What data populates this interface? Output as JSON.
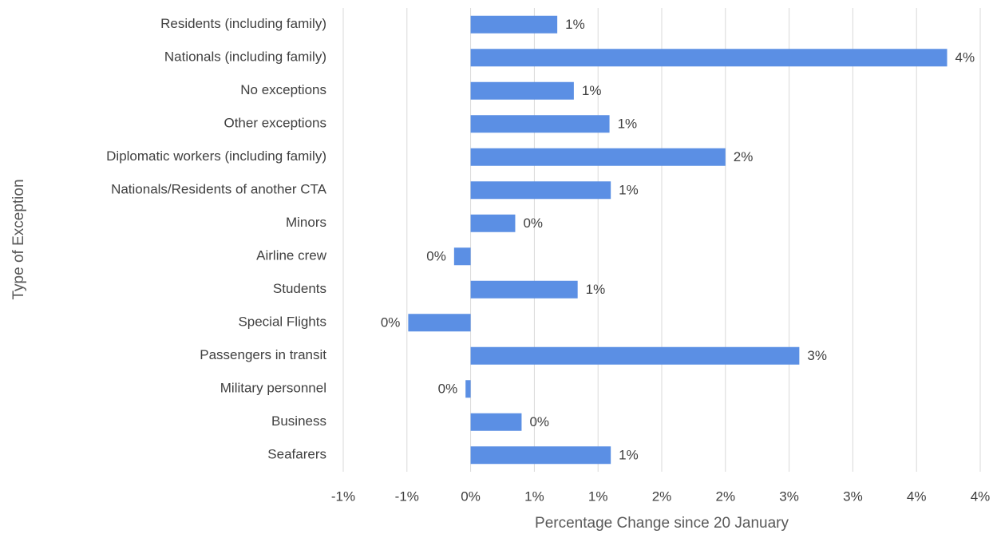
{
  "chart_data": {
    "type": "hbar",
    "x_label": "Percentage Change since 20 January",
    "y_label": "Type of Exception",
    "categories": [
      "Residents (including family)",
      "Nationals (including family)",
      "No exceptions",
      "Other exceptions",
      "Diplomatic workers (including family)",
      "Nationals/Residents of another CTA",
      "Minors",
      "Airline crew",
      "Students",
      "Special Flights",
      "Passengers in transit",
      "Military personnel",
      "Business",
      "Seafarers"
    ],
    "values": [
      0.68,
      3.74,
      0.81,
      1.09,
      2.0,
      1.1,
      0.35,
      -0.13,
      0.84,
      -0.49,
      2.58,
      -0.04,
      0.4,
      1.1
    ],
    "value_labels": [
      "1%",
      "4%",
      "1%",
      "1%",
      "2%",
      "1%",
      "0%",
      "0%",
      "1%",
      "0%",
      "3%",
      "0%",
      "0%",
      "1%"
    ],
    "color": "#5b8fe4",
    "xlim": [
      -1,
      4
    ],
    "xticks": [
      {
        "value": -1,
        "label": "-1%"
      },
      {
        "value": -0.5,
        "label": "-1%"
      },
      {
        "value": 0,
        "label": "0%"
      },
      {
        "value": 0.5,
        "label": "1%"
      },
      {
        "value": 1,
        "label": "1%"
      },
      {
        "value": 1.5,
        "label": "2%"
      },
      {
        "value": 2,
        "label": "2%"
      },
      {
        "value": 2.5,
        "label": "3%"
      },
      {
        "value": 3,
        "label": "3%"
      },
      {
        "value": 3.5,
        "label": "4%"
      },
      {
        "value": 4,
        "label": "4%"
      }
    ],
    "grid": true
  }
}
